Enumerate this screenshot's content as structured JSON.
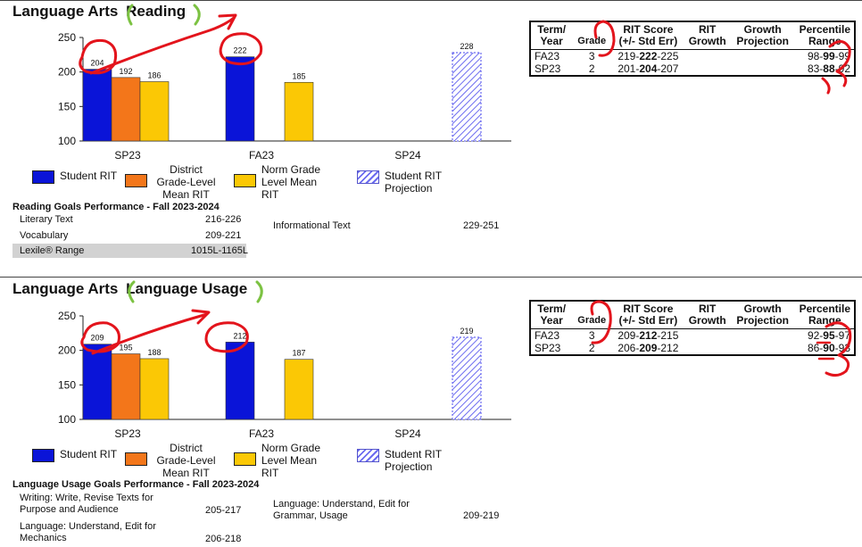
{
  "sections": [
    {
      "title_prefix": "Language Arts",
      "title_subject": "Reading",
      "table": {
        "headers": [
          "Term/ Year",
          "Grade",
          "RIT Score (+/- Std Err)",
          "RIT Growth",
          "Growth Projection",
          "Percentile Range"
        ],
        "rows": [
          {
            "term": "FA23",
            "grade": "3",
            "rit_low": "219-",
            "rit_mid": "222",
            "rit_high": "-225",
            "growth": "",
            "projection": "",
            "pct_low": "98-",
            "pct_mid": "99",
            "pct_high": "-99"
          },
          {
            "term": "SP23",
            "grade": "2",
            "rit_low": "201-",
            "rit_mid": "204",
            "rit_high": "-207",
            "growth": "",
            "projection": "",
            "pct_low": "83-",
            "pct_mid": "88",
            "pct_high": "-92"
          }
        ]
      },
      "goals_heading": "Reading Goals Performance - Fall 2023-2024",
      "goals_left": [
        {
          "label": "Literary Text",
          "range": "216-226"
        },
        {
          "label": "Vocabulary",
          "range": "209-221"
        }
      ],
      "goals_right": [
        {
          "label": "Informational Text",
          "range": "229-251"
        }
      ],
      "lexile": {
        "label": "Lexile® Range",
        "range": "1015L-1165L"
      }
    },
    {
      "title_prefix": "Language Arts",
      "title_subject": "Language Usage",
      "table": {
        "headers": [
          "Term/ Year",
          "Grade",
          "RIT Score (+/- Std Err)",
          "RIT Growth",
          "Growth Projection",
          "Percentile Range"
        ],
        "rows": [
          {
            "term": "FA23",
            "grade": "3",
            "rit_low": "209-",
            "rit_mid": "212",
            "rit_high": "-215",
            "growth": "",
            "projection": "",
            "pct_low": "92-",
            "pct_mid": "95",
            "pct_high": "-97"
          },
          {
            "term": "SP23",
            "grade": "2",
            "rit_low": "206-",
            "rit_mid": "209",
            "rit_high": "-212",
            "growth": "",
            "projection": "",
            "pct_low": "86-",
            "pct_mid": "90",
            "pct_high": "-93"
          }
        ]
      },
      "goals_heading": "Language Usage Goals Performance - Fall 2023-2024",
      "goals_left": [
        {
          "label": "Writing: Write, Revise Texts for Purpose and Audience",
          "range": "205-217"
        },
        {
          "label": "Language: Understand, Edit for Mechanics",
          "range": "206-218"
        }
      ],
      "goals_right": [
        {
          "label": "Language: Understand, Edit for Grammar, Usage",
          "range": "209-219"
        }
      ]
    }
  ],
  "legend": {
    "student_rit": "Student RIT",
    "district_mean": "District Grade-Level Mean RIT",
    "norm_mean": "Norm Grade Level Mean RIT",
    "projection": "Student RIT Projection"
  },
  "colors": {
    "student_rit": "#0a14d8",
    "district_mean": "#f3761a",
    "norm_mean": "#fbc805",
    "projection": "#6c6cf0",
    "annotation_red": "#e3141c",
    "annotation_green": "#7cc242"
  },
  "chart_data": [
    {
      "type": "bar",
      "categories": [
        "SP23",
        "FA23",
        "SP24"
      ],
      "ylim": [
        100,
        250
      ],
      "yticks": [
        100,
        150,
        200,
        250
      ],
      "series": [
        {
          "name": "Student RIT",
          "values": [
            204,
            222,
            null
          ]
        },
        {
          "name": "District Grade-Level Mean RIT",
          "values": [
            192,
            null,
            null
          ]
        },
        {
          "name": "Norm Grade Level Mean RIT",
          "values": [
            186,
            185,
            null
          ]
        },
        {
          "name": "Student RIT Projection",
          "values": [
            null,
            null,
            228
          ]
        }
      ]
    },
    {
      "type": "bar",
      "categories": [
        "SP23",
        "FA23",
        "SP24"
      ],
      "ylim": [
        100,
        250
      ],
      "yticks": [
        100,
        150,
        200,
        250
      ],
      "series": [
        {
          "name": "Student RIT",
          "values": [
            209,
            212,
            null
          ]
        },
        {
          "name": "District Grade-Level Mean RIT",
          "values": [
            195,
            null,
            null
          ]
        },
        {
          "name": "Norm Grade Level Mean RIT",
          "values": [
            188,
            187,
            null
          ]
        },
        {
          "name": "Student RIT Projection",
          "values": [
            null,
            null,
            219
          ]
        }
      ]
    }
  ]
}
